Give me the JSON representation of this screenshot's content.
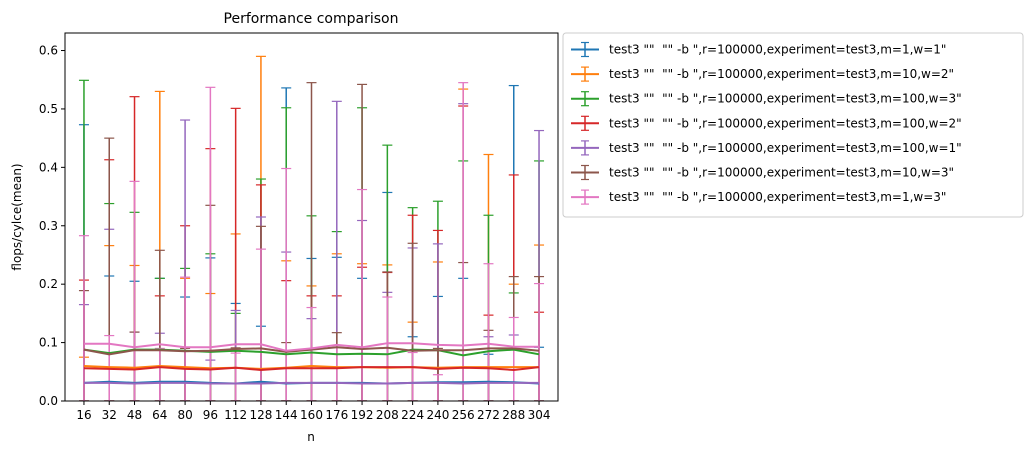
{
  "chart_data": {
    "type": "line",
    "title": "Performance comparison",
    "xlabel": "n",
    "ylabel": "flops/cylce(mean)",
    "x": [
      16,
      32,
      48,
      64,
      80,
      96,
      112,
      128,
      144,
      160,
      176,
      192,
      208,
      224,
      240,
      256,
      272,
      288,
      304
    ],
    "xlim": [
      4,
      316
    ],
    "ylim": [
      0,
      0.63
    ],
    "yticks": [
      0.0,
      0.1,
      0.2,
      0.3,
      0.4,
      0.5,
      0.6
    ],
    "ytick_labels": [
      "0.0",
      "0.1",
      "0.2",
      "0.3",
      "0.4",
      "0.5",
      "0.6"
    ],
    "xtick_labels": [
      "16",
      "32",
      "48",
      "64",
      "80",
      "96",
      "112",
      "128",
      "144",
      "160",
      "176",
      "192",
      "208",
      "224",
      "240",
      "256",
      "272",
      "288",
      "304"
    ],
    "grid": false,
    "legend_position": "outside-right",
    "series": [
      {
        "name": "test3 \"\"  \"\" -b \",r=100000,experiment=test3,m=1,w=1\"",
        "color": "#1f77b4",
        "values": [
          0.031,
          0.033,
          0.031,
          0.033,
          0.033,
          0.031,
          0.03,
          0.033,
          0.03,
          0.031,
          0.031,
          0.031,
          0.03,
          0.031,
          0.032,
          0.032,
          0.033,
          0.032,
          0.03
        ],
        "upper": [
          0.473,
          0.214,
          0.205,
          0.21,
          0.178,
          0.245,
          0.167,
          0.128,
          0.536,
          0.244,
          0.246,
          0.21,
          0.357,
          0.11,
          0.179,
          0.21,
          0.08,
          0.54,
          0.092
        ],
        "lower": [
          0.0,
          0.0,
          0.0,
          0.0,
          0.0,
          0.0,
          0.0,
          0.0,
          0.0,
          0.0,
          0.0,
          0.0,
          0.0,
          0.0,
          0.0,
          0.0,
          0.0,
          0.0,
          0.0
        ]
      },
      {
        "name": "test3 \"\"  \"\" -b \",r=100000,experiment=test3,m=10,w=2\"",
        "color": "#ff7f0e",
        "values": [
          0.06,
          0.058,
          0.057,
          0.06,
          0.058,
          0.056,
          0.057,
          0.055,
          0.057,
          0.06,
          0.058,
          0.058,
          0.057,
          0.058,
          0.057,
          0.058,
          0.058,
          0.058,
          0.058
        ],
        "upper": [
          0.075,
          0.266,
          0.232,
          0.53,
          0.21,
          0.184,
          0.286,
          0.59,
          0.24,
          0.197,
          0.252,
          0.235,
          0.233,
          0.135,
          0.238,
          0.534,
          0.422,
          0.2,
          0.267
        ],
        "lower": [
          0.0,
          0.0,
          0.0,
          0.0,
          0.0,
          0.0,
          0.0,
          0.0,
          0.0,
          0.0,
          0.0,
          0.0,
          0.0,
          0.0,
          0.0,
          0.0,
          0.0,
          0.0,
          0.0
        ]
      },
      {
        "name": "test3 \"\"  \"\" -b \",r=100000,experiment=test3,m=100,w=3\"",
        "color": "#2ca02c",
        "values": [
          0.088,
          0.082,
          0.088,
          0.088,
          0.086,
          0.084,
          0.086,
          0.084,
          0.08,
          0.083,
          0.08,
          0.081,
          0.08,
          0.088,
          0.087,
          0.078,
          0.085,
          0.088,
          0.08
        ],
        "upper": [
          0.549,
          0.338,
          0.323,
          0.21,
          0.227,
          0.252,
          0.15,
          0.38,
          0.502,
          0.317,
          0.29,
          0.502,
          0.438,
          0.331,
          0.342,
          0.411,
          0.318,
          0.185,
          0.411
        ],
        "lower": [
          0.0,
          0.0,
          0.0,
          0.0,
          0.0,
          0.0,
          0.0,
          0.0,
          0.0,
          0.0,
          0.0,
          0.0,
          0.0,
          0.0,
          0.0,
          0.0,
          0.0,
          0.0,
          0.0
        ]
      },
      {
        "name": "test3 \"\"  \"\" -b \",r=100000,experiment=test3,m=100,w=2\"",
        "color": "#d62728",
        "values": [
          0.056,
          0.055,
          0.054,
          0.058,
          0.055,
          0.054,
          0.057,
          0.053,
          0.056,
          0.056,
          0.056,
          0.058,
          0.058,
          0.058,
          0.055,
          0.057,
          0.056,
          0.053,
          0.058
        ],
        "upper": [
          0.207,
          0.413,
          0.521,
          0.18,
          0.3,
          0.432,
          0.501,
          0.37,
          0.206,
          0.18,
          0.18,
          0.229,
          0.22,
          0.318,
          0.292,
          0.505,
          0.147,
          0.387,
          0.152
        ],
        "lower": [
          0.0,
          0.0,
          0.0,
          0.0,
          0.0,
          0.0,
          0.0,
          0.0,
          0.0,
          0.0,
          0.0,
          0.0,
          0.0,
          0.0,
          0.0,
          0.0,
          0.0,
          0.0,
          0.0
        ]
      },
      {
        "name": "test3 \"\"  \"\" -b \",r=100000,experiment=test3,m=100,w=1\"",
        "color": "#9467bd",
        "values": [
          0.031,
          0.031,
          0.03,
          0.031,
          0.031,
          0.03,
          0.03,
          0.03,
          0.031,
          0.031,
          0.031,
          0.03,
          0.03,
          0.031,
          0.031,
          0.03,
          0.031,
          0.031,
          0.031
        ],
        "upper": [
          0.165,
          0.294,
          0.118,
          0.116,
          0.481,
          0.07,
          0.155,
          0.315,
          0.255,
          0.141,
          0.513,
          0.309,
          0.186,
          0.262,
          0.269,
          0.509,
          0.11,
          0.113,
          0.463
        ],
        "lower": [
          0.0,
          0.0,
          0.0,
          0.0,
          0.0,
          0.0,
          0.0,
          0.0,
          0.0,
          0.0,
          0.0,
          0.0,
          0.0,
          0.0,
          0.0,
          0.0,
          0.0,
          0.0,
          0.0
        ]
      },
      {
        "name": "test3 \"\"  \"\" -b \",r=100000,experiment=test3,m=10,w=3\"",
        "color": "#8c564b",
        "values": [
          0.088,
          0.08,
          0.087,
          0.087,
          0.085,
          0.086,
          0.089,
          0.09,
          0.084,
          0.088,
          0.092,
          0.089,
          0.091,
          0.086,
          0.087,
          0.087,
          0.09,
          0.09,
          0.086
        ],
        "upper": [
          0.189,
          0.45,
          0.118,
          0.258,
          0.09,
          0.335,
          0.091,
          0.299,
          0.1,
          0.545,
          0.117,
          0.542,
          0.221,
          0.27,
          0.09,
          0.237,
          0.121,
          0.213,
          0.213
        ],
        "lower": [
          0.0,
          0.0,
          0.0,
          0.0,
          0.0,
          0.0,
          0.0,
          0.0,
          0.0,
          0.0,
          0.0,
          0.0,
          0.0,
          0.0,
          0.0,
          0.0,
          0.0,
          0.0,
          0.0
        ]
      },
      {
        "name": "test3 \"\"  \"\" -b \",r=100000,experiment=test3,m=1,w=3\"",
        "color": "#e377c2",
        "values": [
          0.098,
          0.098,
          0.092,
          0.097,
          0.092,
          0.092,
          0.097,
          0.097,
          0.086,
          0.09,
          0.096,
          0.092,
          0.099,
          0.099,
          0.096,
          0.095,
          0.098,
          0.093,
          0.093
        ],
        "upper": [
          0.283,
          0.112,
          0.376,
          0.09,
          0.212,
          0.537,
          0.082,
          0.26,
          0.398,
          0.16,
          0.095,
          0.362,
          0.178,
          0.083,
          0.045,
          0.545,
          0.235,
          0.143,
          0.201
        ],
        "lower": [
          0.0,
          0.0,
          0.0,
          0.0,
          0.0,
          0.0,
          0.0,
          0.0,
          0.0,
          0.0,
          0.0,
          0.0,
          0.0,
          0.0,
          0.0,
          0.0,
          0.0,
          0.0,
          0.0
        ]
      }
    ]
  }
}
